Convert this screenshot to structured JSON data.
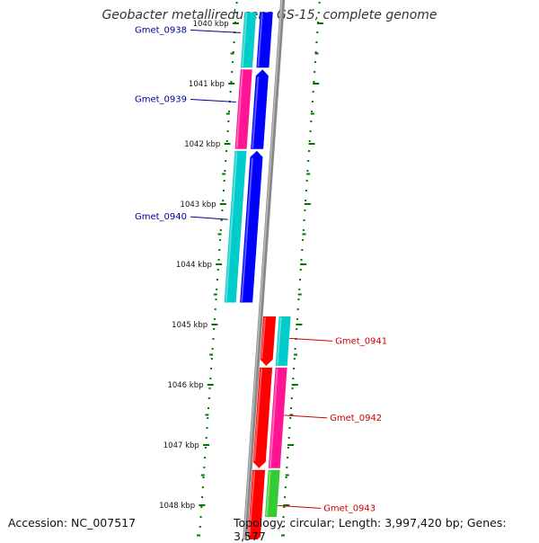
{
  "title": "Geobacter metallireducens GS-15, complete genome",
  "footer": {
    "accession": "Accession: NC_007517",
    "summary": "Topology: circular; Length: 3,997,420 bp; Genes: 3,577"
  },
  "scale_labels": [
    {
      "label": "1040 kbp",
      "kbp": 1040
    },
    {
      "label": "1041 kbp",
      "kbp": 1041
    },
    {
      "label": "1042 kbp",
      "kbp": 1042
    },
    {
      "label": "1043 kbp",
      "kbp": 1043
    },
    {
      "label": "1044 kbp",
      "kbp": 1044
    },
    {
      "label": "1045 kbp",
      "kbp": 1045
    },
    {
      "label": "1046 kbp",
      "kbp": 1046
    },
    {
      "label": "1047 kbp",
      "kbp": 1047
    },
    {
      "label": "1048 kbp",
      "kbp": 1048
    }
  ],
  "genes": [
    {
      "name": "Gmet_0938",
      "strand": "reverse",
      "start_kbp": 1039.8,
      "end_kbp": 1040.75
    },
    {
      "name": "Gmet_0939",
      "strand": "reverse",
      "start_kbp": 1040.75,
      "end_kbp": 1042.1
    },
    {
      "name": "Gmet_0940",
      "strand": "reverse",
      "start_kbp": 1042.1,
      "end_kbp": 1044.65
    },
    {
      "name": "Gmet_0941",
      "strand": "forward",
      "start_kbp": 1044.85,
      "end_kbp": 1045.7
    },
    {
      "name": "Gmet_0942",
      "strand": "forward",
      "start_kbp": 1045.7,
      "end_kbp": 1047.4
    },
    {
      "name": "Gmet_0943",
      "strand": "forward",
      "start_kbp": 1047.4,
      "end_kbp": 1048.7
    }
  ],
  "colors": {
    "cds_forward": "#ff0000",
    "cds_reverse": "#0000ff",
    "cog_a": "#00cccc",
    "cog_b": "#ff1493",
    "cog_c": "#33cc33",
    "backbone": "#888888",
    "ticks": "#007700",
    "label_left": "#000099",
    "label_right": "#cc0000"
  }
}
